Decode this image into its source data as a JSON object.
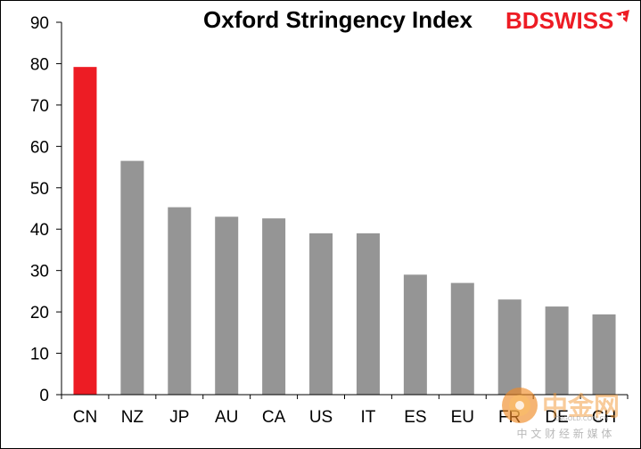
{
  "chart_data": {
    "type": "bar",
    "title": "Oxford Stringency Index",
    "categories": [
      "CN",
      "NZ",
      "JP",
      "AU",
      "CA",
      "US",
      "IT",
      "ES",
      "EU",
      "FR",
      "DE",
      "CH"
    ],
    "values": [
      79.2,
      56.5,
      45.3,
      43.0,
      42.6,
      39.0,
      39.0,
      29.0,
      27.0,
      23.0,
      21.3,
      19.4
    ],
    "highlight_category": "CN",
    "highlight_color": "#ed1c24",
    "bar_color": "#959595",
    "ylim": [
      0,
      90
    ],
    "yticks": [
      0,
      10,
      20,
      30,
      40,
      50,
      60,
      70,
      80,
      90
    ],
    "grid": false,
    "legend": "none"
  },
  "branding": {
    "logo_bd": "BD",
    "logo_swiss": "SWISS",
    "logo_color": "#ed1c24",
    "watermark_main": "中金网",
    "watermark_sub": "中 文 财 经 新 媒 体",
    "watermark_url": "CNGOLD.COM.CN"
  }
}
